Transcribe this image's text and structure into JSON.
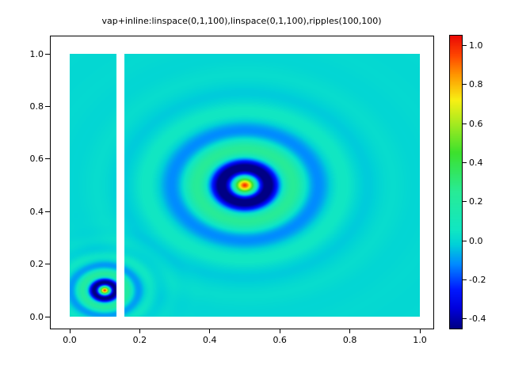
{
  "window": {
    "background": "#ffffff"
  },
  "title": "vap+inline:linspace(0,1,100),linspace(0,1,100),ripples(100,100)",
  "chart_data": {
    "type": "heatmap",
    "title": "vap+inline:linspace(0,1,100),linspace(0,1,100),ripples(100,100)",
    "xlabel": "",
    "ylabel": "",
    "x_range": [
      0,
      1
    ],
    "y_range": [
      0,
      1
    ],
    "z_range": [
      -0.45,
      1.05
    ],
    "grid_resolution": [
      100,
      100
    ],
    "grid": false,
    "legend": false,
    "x_tick_values": [
      0,
      0.2,
      0.4,
      0.6,
      0.8,
      1.0
    ],
    "x_tick_labels": [
      "0.0",
      "0.2",
      "0.4",
      "0.6",
      "0.8",
      "1.0"
    ],
    "y_tick_values": [
      0,
      0.2,
      0.4,
      0.6,
      0.8,
      1.0
    ],
    "y_tick_labels": [
      "0.0",
      "0.2",
      "0.4",
      "0.6",
      "0.8",
      "1.0"
    ],
    "colorbar": {
      "position": "right",
      "tick_values": [
        1.0,
        0.8,
        0.6,
        0.4,
        0.2,
        0.0,
        -0.2,
        -0.4
      ],
      "tick_labels": [
        "1.0",
        "0.8",
        "0.6",
        "0.4",
        "0.2",
        "0.0",
        "-0.2",
        "-0.4"
      ]
    },
    "surface": {
      "description": "sum of two radially damped cosine ripples (ripples demo) on a 100x100 grid over the unit square; background value 0",
      "background_value": 0,
      "ripples": [
        {
          "center_x": 0.5,
          "center_y": 0.5,
          "wave_number": 44,
          "decay": 10,
          "amplitude": 1.0
        },
        {
          "center_x": 0.1,
          "center_y": 0.1,
          "wave_number": 95,
          "decay": 24,
          "amplitude": 1.0
        }
      ],
      "missing_data_stripe_x": [
        0.133,
        0.155
      ],
      "missing_data_color": "#ffffff"
    },
    "colormap": {
      "name": "jet-like",
      "stops": [
        {
          "t": 0.0,
          "rgb": [
            0,
            0,
            132
          ]
        },
        {
          "t": 0.067,
          "rgb": [
            0,
            0,
            220
          ]
        },
        {
          "t": 0.133,
          "rgb": [
            0,
            25,
            255
          ]
        },
        {
          "t": 0.22,
          "rgb": [
            0,
            140,
            255
          ]
        },
        {
          "t": 0.287,
          "rgb": [
            0,
            210,
            215
          ]
        },
        {
          "t": 0.333,
          "rgb": [
            16,
            230,
            196
          ]
        },
        {
          "t": 0.467,
          "rgb": [
            40,
            235,
            150
          ]
        },
        {
          "t": 0.6,
          "rgb": [
            60,
            225,
            45
          ]
        },
        {
          "t": 0.713,
          "rgb": [
            180,
            235,
            30
          ]
        },
        {
          "t": 0.78,
          "rgb": [
            248,
            240,
            20
          ]
        },
        {
          "t": 0.867,
          "rgb": [
            255,
            150,
            0
          ]
        },
        {
          "t": 0.933,
          "rgb": [
            255,
            70,
            0
          ]
        },
        {
          "t": 1.0,
          "rgb": [
            235,
            10,
            5
          ]
        }
      ]
    }
  }
}
